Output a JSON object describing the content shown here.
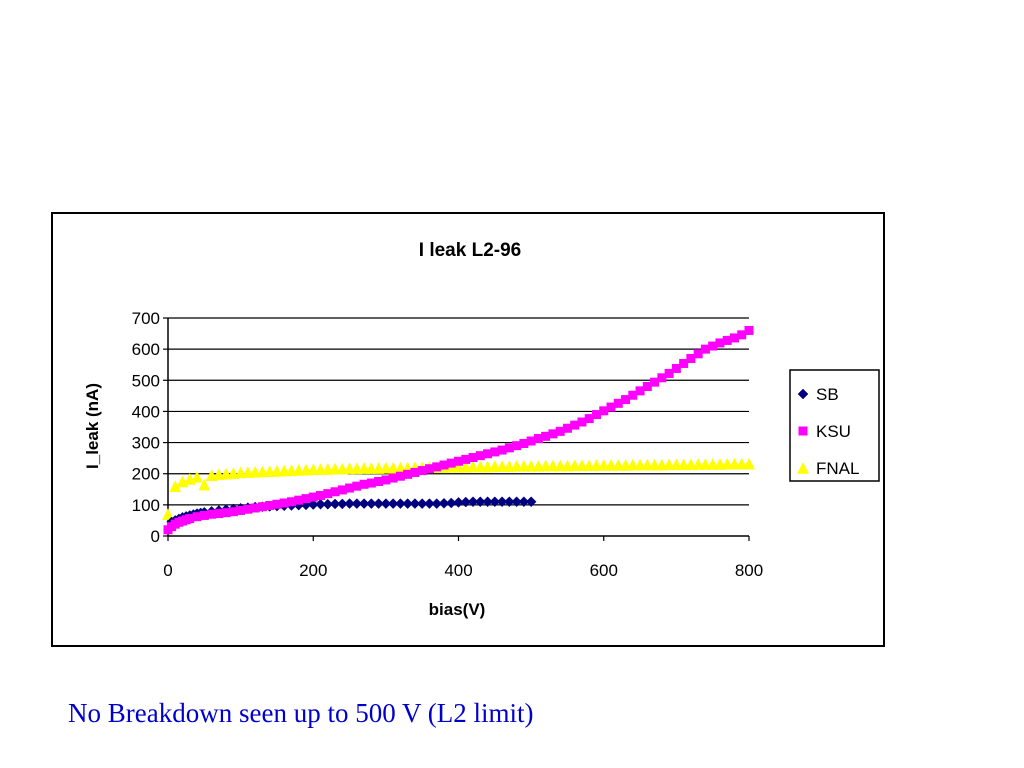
{
  "chart_data": {
    "type": "scatter",
    "title": "I leak L2-96",
    "xlabel": "bias(V)",
    "ylabel": "I_leak (nA)",
    "xlim": [
      0,
      800
    ],
    "ylim": [
      0,
      700
    ],
    "xticks": [
      "0",
      "200",
      "400",
      "600",
      "800"
    ],
    "yticks": [
      "0",
      "100",
      "200",
      "300",
      "400",
      "500",
      "600",
      "700"
    ],
    "grid": "horizontal",
    "legend_position": "right",
    "series": [
      {
        "name": "SB",
        "color": "#000080",
        "marker": "diamond",
        "x": [
          5,
          10,
          15,
          20,
          25,
          30,
          35,
          40,
          45,
          50,
          60,
          70,
          80,
          90,
          100,
          110,
          120,
          130,
          140,
          150,
          160,
          170,
          180,
          190,
          200,
          210,
          220,
          230,
          240,
          250,
          260,
          270,
          280,
          290,
          300,
          310,
          320,
          330,
          340,
          350,
          360,
          370,
          380,
          390,
          400,
          410,
          420,
          430,
          440,
          450,
          460,
          470,
          480,
          490,
          500
        ],
        "y": [
          45,
          50,
          55,
          60,
          63,
          66,
          69,
          72,
          74,
          76,
          79,
          82,
          85,
          87,
          89,
          91,
          93,
          94,
          95,
          96,
          97,
          98,
          99,
          100,
          101,
          102,
          102,
          103,
          103,
          104,
          104,
          104,
          104,
          104,
          104,
          104,
          104,
          104,
          104,
          104,
          104,
          104,
          105,
          106,
          108,
          109,
          110,
          110,
          110,
          110,
          110,
          110,
          110,
          110,
          110
        ]
      },
      {
        "name": "KSU",
        "color": "#ff00ff",
        "marker": "square",
        "x": [
          0,
          5,
          10,
          15,
          20,
          25,
          30,
          40,
          50,
          60,
          70,
          80,
          90,
          100,
          110,
          120,
          130,
          140,
          150,
          160,
          170,
          180,
          190,
          200,
          210,
          220,
          230,
          240,
          250,
          260,
          270,
          280,
          290,
          300,
          310,
          320,
          330,
          340,
          350,
          360,
          370,
          380,
          390,
          400,
          410,
          420,
          430,
          440,
          450,
          460,
          470,
          480,
          490,
          500,
          510,
          520,
          530,
          540,
          550,
          560,
          570,
          580,
          590,
          600,
          610,
          620,
          630,
          640,
          650,
          660,
          670,
          680,
          690,
          700,
          710,
          720,
          730,
          740,
          750,
          760,
          770,
          780,
          790,
          800
        ],
        "y": [
          20,
          30,
          38,
          44,
          48,
          52,
          56,
          62,
          66,
          70,
          72,
          75,
          78,
          82,
          86,
          90,
          94,
          98,
          102,
          106,
          110,
          115,
          120,
          125,
          130,
          136,
          142,
          148,
          154,
          160,
          166,
          170,
          175,
          180,
          186,
          192,
          198,
          204,
          210,
          216,
          222,
          228,
          234,
          240,
          246,
          252,
          258,
          264,
          270,
          276,
          283,
          290,
          297,
          305,
          313,
          320,
          328,
          336,
          346,
          356,
          366,
          377,
          390,
          402,
          414,
          426,
          438,
          452,
          466,
          480,
          494,
          508,
          522,
          538,
          554,
          570,
          585,
          600,
          610,
          620,
          628,
          636,
          646,
          660
        ]
      },
      {
        "name": "FNAL",
        "color": "#ffff00",
        "marker": "triangle",
        "x": [
          0,
          10,
          20,
          30,
          40,
          50,
          60,
          70,
          80,
          90,
          100,
          110,
          120,
          130,
          140,
          150,
          160,
          170,
          180,
          190,
          200,
          210,
          220,
          230,
          240,
          250,
          260,
          270,
          280,
          290,
          300,
          310,
          320,
          330,
          340,
          350,
          360,
          370,
          380,
          390,
          400,
          410,
          420,
          430,
          440,
          450,
          460,
          470,
          480,
          490,
          500,
          510,
          520,
          530,
          540,
          550,
          560,
          570,
          580,
          590,
          600,
          610,
          620,
          630,
          640,
          650,
          660,
          670,
          680,
          690,
          700,
          710,
          720,
          730,
          740,
          750,
          760,
          770,
          780,
          790,
          800
        ],
        "y": [
          70,
          160,
          175,
          183,
          190,
          165,
          195,
          198,
          200,
          202,
          204,
          205,
          206,
          207,
          208,
          209,
          210,
          211,
          212,
          213,
          214,
          215,
          215,
          216,
          216,
          217,
          217,
          218,
          218,
          218,
          219,
          219,
          219,
          220,
          220,
          220,
          221,
          221,
          221,
          222,
          222,
          222,
          223,
          223,
          223,
          224,
          224,
          224,
          225,
          225,
          225,
          225,
          226,
          226,
          226,
          226,
          227,
          227,
          227,
          227,
          228,
          228,
          228,
          228,
          229,
          229,
          229,
          229,
          229,
          230,
          230,
          230,
          230,
          231,
          231,
          231,
          231,
          232,
          232,
          232,
          232
        ]
      }
    ]
  },
  "caption": "No Breakdown seen up to 500 V (L2 limit)"
}
